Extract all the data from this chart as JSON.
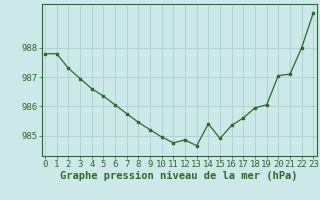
{
  "x": [
    0,
    1,
    2,
    3,
    4,
    5,
    6,
    7,
    8,
    9,
    10,
    11,
    12,
    13,
    14,
    15,
    16,
    17,
    18,
    19,
    20,
    21,
    22,
    23
  ],
  "y": [
    987.8,
    987.8,
    987.3,
    986.95,
    986.6,
    986.35,
    986.05,
    985.75,
    985.45,
    985.2,
    984.95,
    984.75,
    984.85,
    984.65,
    985.4,
    984.9,
    985.35,
    985.6,
    985.95,
    986.05,
    987.05,
    987.1,
    988.0,
    989.2
  ],
  "line_color": "#2d6a2d",
  "marker_color": "#2d6a2d",
  "bg_color": "#cce8e8",
  "grid_color": "#b0d4d4",
  "axis_color": "#2d6a2d",
  "label_color": "#2d6a2d",
  "xlabel": "Graphe pression niveau de la mer (hPa)",
  "ylim": [
    984.3,
    989.5
  ],
  "yticks": [
    985,
    986,
    987,
    988
  ],
  "xticks": [
    0,
    1,
    2,
    3,
    4,
    5,
    6,
    7,
    8,
    9,
    10,
    11,
    12,
    13,
    14,
    15,
    16,
    17,
    18,
    19,
    20,
    21,
    22,
    23
  ],
  "font_size": 6.5,
  "xlabel_font_size": 7.5
}
